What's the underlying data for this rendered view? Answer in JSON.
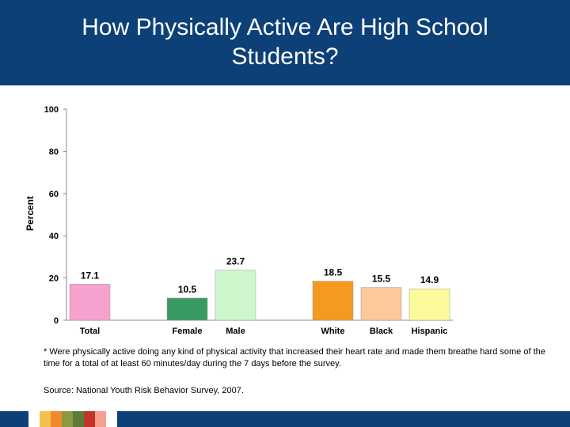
{
  "header": {
    "title_line1": "How Physically Active Are High School",
    "title_line2": "Students?"
  },
  "chart_data": {
    "type": "bar",
    "title": "",
    "xlabel": "",
    "ylabel": "Percent",
    "ylim": [
      0,
      100
    ],
    "yticks": [
      0,
      20,
      40,
      60,
      80,
      100
    ],
    "grid": false,
    "legend": "none",
    "categories": [
      "Total",
      "Female",
      "Male",
      "White",
      "Black",
      "Hispanic"
    ],
    "values": [
      17.1,
      10.5,
      23.7,
      18.5,
      15.5,
      14.9
    ],
    "value_labels": [
      "17.1",
      "10.5",
      "23.7",
      "18.5",
      "15.5",
      "14.9"
    ],
    "colors": [
      "#f7a1cf",
      "#3a9a63",
      "#ccf7cc",
      "#f59a21",
      "#fcc99b",
      "#fbfb9c"
    ]
  },
  "footnote": "* Were physically active doing any kind of physical activity that increased their heart rate and made them breathe hard some of the time for a total of at least 60 minutes/day during the 7 days before the survey.",
  "source": "Source: National Youth Risk Behavior Survey, 2007.",
  "theme": {
    "header_bg": "#0d4077",
    "footer_swatches": [
      "#ffffff",
      "#f2c14e",
      "#f08b2c",
      "#8a9a3c",
      "#5c7a3a",
      "#c2342a",
      "#f4a08c",
      "#ffffff"
    ]
  }
}
